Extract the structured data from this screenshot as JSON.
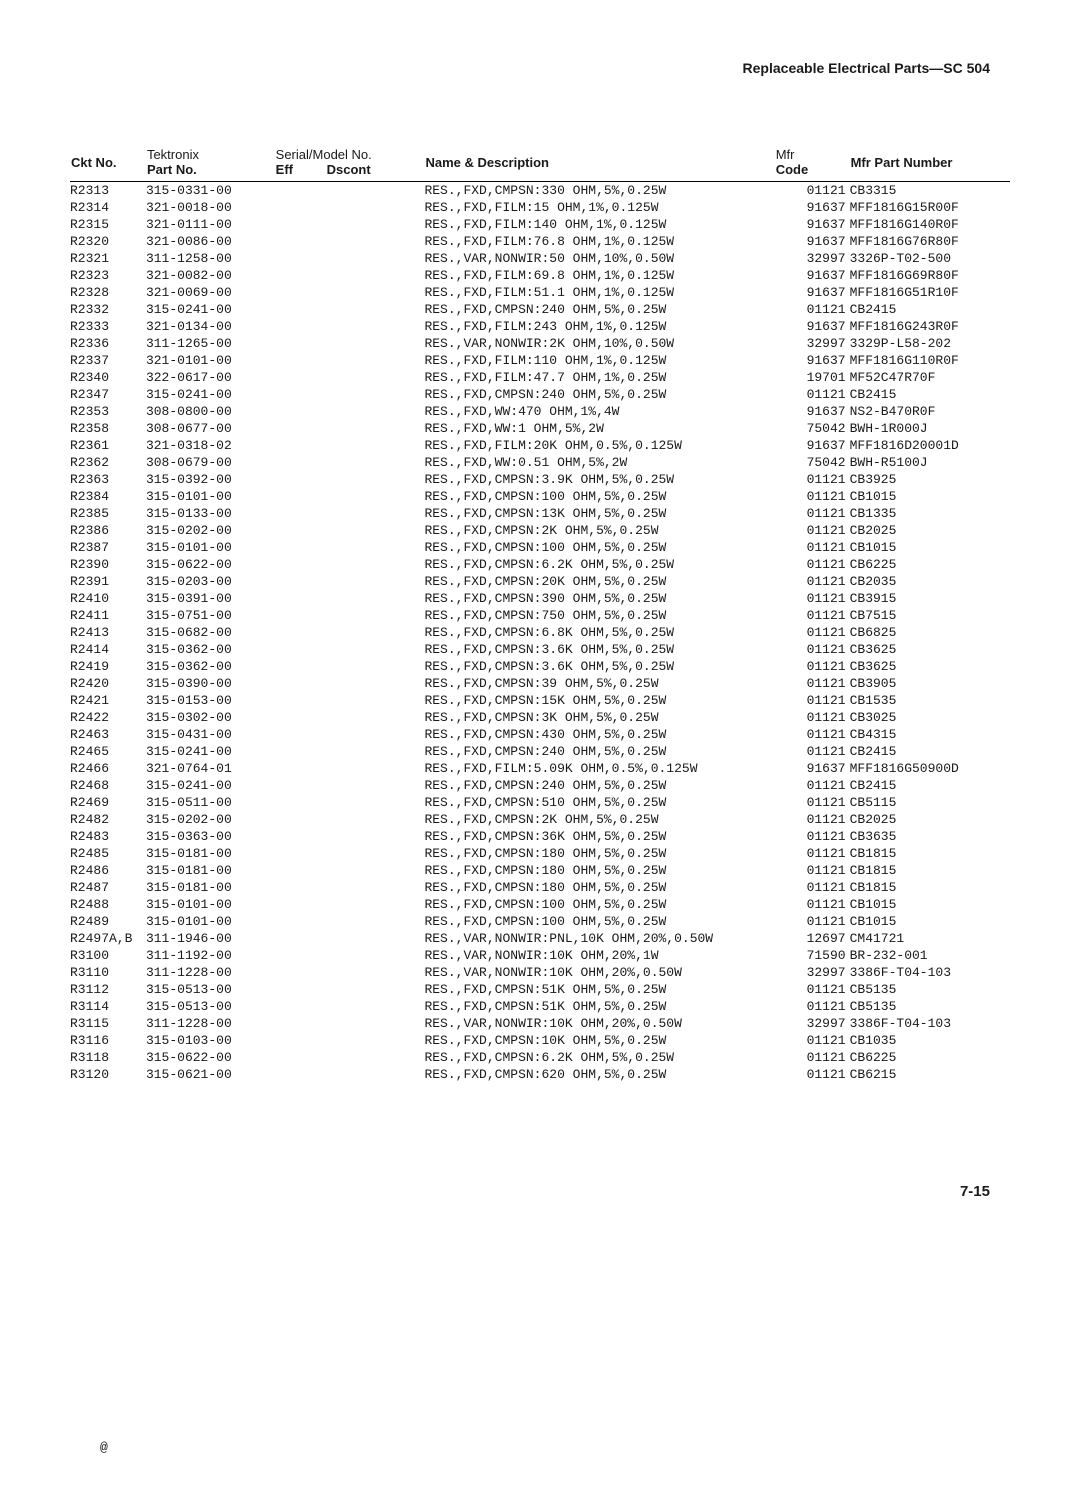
{
  "header": "Replaceable Electrical Parts—SC 504",
  "footer": "7-15",
  "rev_mark": "@",
  "columns": {
    "ckt": {
      "line2": "Ckt No."
    },
    "part": {
      "line1": "Tektronix",
      "line2": "Part No."
    },
    "serial": {
      "line1": "Serial/Model No.",
      "line2a": "Eff",
      "line2b": "Dscont"
    },
    "name": {
      "line2": "Name & Description"
    },
    "mfr": {
      "line1": "Mfr",
      "line2": "Code"
    },
    "mpn": {
      "line2": "Mfr Part Number"
    }
  },
  "rows": [
    {
      "ckt": "R2313",
      "part": "315-0331-00",
      "name": "RES.,FXD,CMPSN:330 OHM,5%,0.25W",
      "mfr": "01121",
      "mpn": "CB3315",
      "gap": false
    },
    {
      "ckt": "R2314",
      "part": "321-0018-00",
      "name": "RES.,FXD,FILM:15 OHM,1%,0.125W",
      "mfr": "91637",
      "mpn": "MFF1816G15R00F",
      "gap": false
    },
    {
      "ckt": "R2315",
      "part": "321-0111-00",
      "name": "RES.,FXD,FILM:140 OHM,1%,0.125W",
      "mfr": "91637",
      "mpn": "MFF1816G140R0F",
      "gap": false
    },
    {
      "ckt": "R2320",
      "part": "321-0086-00",
      "name": "RES.,FXD,FILM:76.8 OHM,1%,0.125W",
      "mfr": "91637",
      "mpn": "MFF1816G76R80F",
      "gap": false
    },
    {
      "ckt": "R2321",
      "part": "311-1258-00",
      "name": "RES.,VAR,NONWIR:50 OHM,10%,0.50W",
      "mfr": "32997",
      "mpn": "3326P-T02-500",
      "gap": false
    },
    {
      "ckt": "R2323",
      "part": "321-0082-00",
      "name": "RES.,FXD,FILM:69.8 OHM,1%,0.125W",
      "mfr": "91637",
      "mpn": "MFF1816G69R80F",
      "gap": true
    },
    {
      "ckt": "R2328",
      "part": "321-0069-00",
      "name": "RES.,FXD,FILM:51.1 OHM,1%,0.125W",
      "mfr": "91637",
      "mpn": "MFF1816G51R10F",
      "gap": false
    },
    {
      "ckt": "R2332",
      "part": "315-0241-00",
      "name": "RES.,FXD,CMPSN:240 OHM,5%,0.25W",
      "mfr": "01121",
      "mpn": "CB2415",
      "gap": false
    },
    {
      "ckt": "R2333",
      "part": "321-0134-00",
      "name": "RES.,FXD,FILM:243 OHM,1%,0.125W",
      "mfr": "91637",
      "mpn": "MFF1816G243R0F",
      "gap": false
    },
    {
      "ckt": "R2336",
      "part": "311-1265-00",
      "name": "RES.,VAR,NONWIR:2K OHM,10%,0.50W",
      "mfr": "32997",
      "mpn": "3329P-L58-202",
      "gap": false
    },
    {
      "ckt": "R2337",
      "part": "321-0101-00",
      "name": "RES.,FXD,FILM:110 OHM,1%,0.125W",
      "mfr": "91637",
      "mpn": "MFF1816G110R0F",
      "gap": true
    },
    {
      "ckt": "R2340",
      "part": "322-0617-00",
      "name": "RES.,FXD,FILM:47.7 OHM,1%,0.25W",
      "mfr": "19701",
      "mpn": "MF52C47R70F",
      "gap": false
    },
    {
      "ckt": "R2347",
      "part": "315-0241-00",
      "name": "RES.,FXD,CMPSN:240 OHM,5%,0.25W",
      "mfr": "01121",
      "mpn": "CB2415",
      "gap": false
    },
    {
      "ckt": "R2353",
      "part": "308-0800-00",
      "name": "RES.,FXD,WW:470 OHM,1%,4W",
      "mfr": "91637",
      "mpn": "NS2-B470R0F",
      "gap": false
    },
    {
      "ckt": "R2358",
      "part": "308-0677-00",
      "name": "RES.,FXD,WW:1 OHM,5%,2W",
      "mfr": "75042",
      "mpn": "BWH-1R000J",
      "gap": false
    },
    {
      "ckt": "R2361",
      "part": "321-0318-02",
      "name": "RES.,FXD,FILM:20K OHM,0.5%,0.125W",
      "mfr": "91637",
      "mpn": "MFF1816D20001D",
      "gap": true
    },
    {
      "ckt": "R2362",
      "part": "308-0679-00",
      "name": "RES.,FXD,WW:0.51 OHM,5%,2W",
      "mfr": "75042",
      "mpn": "BWH-R5100J",
      "gap": false
    },
    {
      "ckt": "R2363",
      "part": "315-0392-00",
      "name": "RES.,FXD,CMPSN:3.9K OHM,5%,0.25W",
      "mfr": "01121",
      "mpn": "CB3925",
      "gap": false
    },
    {
      "ckt": "R2384",
      "part": "315-0101-00",
      "name": "RES.,FXD,CMPSN:100 OHM,5%,0.25W",
      "mfr": "01121",
      "mpn": "CB1015",
      "gap": false
    },
    {
      "ckt": "R2385",
      "part": "315-0133-00",
      "name": "RES.,FXD,CMPSN:13K OHM,5%,0.25W",
      "mfr": "01121",
      "mpn": "CB1335",
      "gap": false
    },
    {
      "ckt": "R2386",
      "part": "315-0202-00",
      "name": "RES.,FXD,CMPSN:2K OHM,5%,0.25W",
      "mfr": "01121",
      "mpn": "CB2025",
      "gap": true
    },
    {
      "ckt": "R2387",
      "part": "315-0101-00",
      "name": "RES.,FXD,CMPSN:100 OHM,5%,0.25W",
      "mfr": "01121",
      "mpn": "CB1015",
      "gap": false
    },
    {
      "ckt": "R2390",
      "part": "315-0622-00",
      "name": "RES.,FXD,CMPSN:6.2K OHM,5%,0.25W",
      "mfr": "01121",
      "mpn": "CB6225",
      "gap": false
    },
    {
      "ckt": "R2391",
      "part": "315-0203-00",
      "name": "RES.,FXD,CMPSN:20K OHM,5%,0.25W",
      "mfr": "01121",
      "mpn": "CB2035",
      "gap": false
    },
    {
      "ckt": "R2410",
      "part": "315-0391-00",
      "name": "RES.,FXD,CMPSN:390 OHM,5%,0.25W",
      "mfr": "01121",
      "mpn": "CB3915",
      "gap": false
    },
    {
      "ckt": "R2411",
      "part": "315-0751-00",
      "name": "RES.,FXD,CMPSN:750 OHM,5%,0.25W",
      "mfr": "01121",
      "mpn": "CB7515",
      "gap": true
    },
    {
      "ckt": "R2413",
      "part": "315-0682-00",
      "name": "RES.,FXD,CMPSN:6.8K OHM,5%,0.25W",
      "mfr": "01121",
      "mpn": "CB6825",
      "gap": false
    },
    {
      "ckt": "R2414",
      "part": "315-0362-00",
      "name": "RES.,FXD,CMPSN:3.6K OHM,5%,0.25W",
      "mfr": "01121",
      "mpn": "CB3625",
      "gap": false
    },
    {
      "ckt": "R2419",
      "part": "315-0362-00",
      "name": "RES.,FXD,CMPSN:3.6K OHM,5%,0.25W",
      "mfr": "01121",
      "mpn": "CB3625",
      "gap": false
    },
    {
      "ckt": "R2420",
      "part": "315-0390-00",
      "name": "RES.,FXD,CMPSN:39 OHM,5%,0.25W",
      "mfr": "01121",
      "mpn": "CB3905",
      "gap": false
    },
    {
      "ckt": "R2421",
      "part": "315-0153-00",
      "name": "RES.,FXD,CMPSN:15K OHM,5%,0.25W",
      "mfr": "01121",
      "mpn": "CB1535",
      "gap": true
    },
    {
      "ckt": "R2422",
      "part": "315-0302-00",
      "name": "RES.,FXD,CMPSN:3K OHM,5%,0.25W",
      "mfr": "01121",
      "mpn": "CB3025",
      "gap": false
    },
    {
      "ckt": "R2463",
      "part": "315-0431-00",
      "name": "RES.,FXD,CMPSN:430 OHM,5%,0.25W",
      "mfr": "01121",
      "mpn": "CB4315",
      "gap": false
    },
    {
      "ckt": "R2465",
      "part": "315-0241-00",
      "name": "RES.,FXD,CMPSN:240 OHM,5%,0.25W",
      "mfr": "01121",
      "mpn": "CB2415",
      "gap": false
    },
    {
      "ckt": "R2466",
      "part": "321-0764-01",
      "name": "RES.,FXD,FILM:5.09K OHM,0.5%,0.125W",
      "mfr": "91637",
      "mpn": "MFF1816G50900D",
      "gap": false
    },
    {
      "ckt": "R2468",
      "part": "315-0241-00",
      "name": "RES.,FXD,CMPSN:240 OHM,5%,0.25W",
      "mfr": "01121",
      "mpn": "CB2415",
      "gap": true
    },
    {
      "ckt": "R2469",
      "part": "315-0511-00",
      "name": "RES.,FXD,CMPSN:510 OHM,5%,0.25W",
      "mfr": "01121",
      "mpn": "CB5115",
      "gap": false
    },
    {
      "ckt": "R2482",
      "part": "315-0202-00",
      "name": "RES.,FXD,CMPSN:2K OHM,5%,0.25W",
      "mfr": "01121",
      "mpn": "CB2025",
      "gap": false
    },
    {
      "ckt": "R2483",
      "part": "315-0363-00",
      "name": "RES.,FXD,CMPSN:36K OHM,5%,0.25W",
      "mfr": "01121",
      "mpn": "CB3635",
      "gap": false
    },
    {
      "ckt": "R2485",
      "part": "315-0181-00",
      "name": "RES.,FXD,CMPSN:180 OHM,5%,0.25W",
      "mfr": "01121",
      "mpn": "CB1815",
      "gap": false
    },
    {
      "ckt": "R2486",
      "part": "315-0181-00",
      "name": "RES.,FXD,CMPSN:180 OHM,5%,0.25W",
      "mfr": "01121",
      "mpn": "CB1815",
      "gap": true
    },
    {
      "ckt": "R2487",
      "part": "315-0181-00",
      "name": "RES.,FXD,CMPSN:180 OHM,5%,0.25W",
      "mfr": "01121",
      "mpn": "CB1815",
      "gap": false
    },
    {
      "ckt": "R2488",
      "part": "315-0101-00",
      "name": "RES.,FXD,CMPSN:100 OHM,5%,0.25W",
      "mfr": "01121",
      "mpn": "CB1015",
      "gap": false
    },
    {
      "ckt": "R2489",
      "part": "315-0101-00",
      "name": "RES.,FXD,CMPSN:100 OHM,5%,0.25W",
      "mfr": "01121",
      "mpn": "CB1015",
      "gap": false
    },
    {
      "ckt": "R2497A,B",
      "part": "311-1946-00",
      "name": "RES.,VAR,NONWIR:PNL,10K OHM,20%,0.50W",
      "mfr": "12697",
      "mpn": "CM41721",
      "gap": false
    },
    {
      "ckt": "R3100",
      "part": "311-1192-00",
      "name": "RES.,VAR,NONWIR:10K OHM,20%,1W",
      "mfr": "71590",
      "mpn": "BR-232-001",
      "gap": true
    },
    {
      "ckt": "R3110",
      "part": "311-1228-00",
      "name": "RES.,VAR,NONWIR:10K OHM,20%,0.50W",
      "mfr": "32997",
      "mpn": "3386F-T04-103",
      "gap": false
    },
    {
      "ckt": "R3112",
      "part": "315-0513-00",
      "name": "RES.,FXD,CMPSN:51K OHM,5%,0.25W",
      "mfr": "01121",
      "mpn": "CB5135",
      "gap": false
    },
    {
      "ckt": "R3114",
      "part": "315-0513-00",
      "name": "RES.,FXD,CMPSN:51K OHM,5%,0.25W",
      "mfr": "01121",
      "mpn": "CB5135",
      "gap": false
    },
    {
      "ckt": "R3115",
      "part": "311-1228-00",
      "name": "RES.,VAR,NONWIR:10K OHM,20%,0.50W",
      "mfr": "32997",
      "mpn": "3386F-T04-103",
      "gap": false
    },
    {
      "ckt": "R3116",
      "part": "315-0103-00",
      "name": "RES.,FXD,CMPSN:10K OHM,5%,0.25W",
      "mfr": "01121",
      "mpn": "CB1035",
      "gap": true
    },
    {
      "ckt": "R3118",
      "part": "315-0622-00",
      "name": "RES.,FXD,CMPSN:6.2K OHM,5%,0.25W",
      "mfr": "01121",
      "mpn": "CB6225",
      "gap": false
    },
    {
      "ckt": "R3120",
      "part": "315-0621-00",
      "name": "RES.,FXD,CMPSN:620 OHM,5%,0.25W",
      "mfr": "01121",
      "mpn": "CB6215",
      "gap": false
    }
  ]
}
